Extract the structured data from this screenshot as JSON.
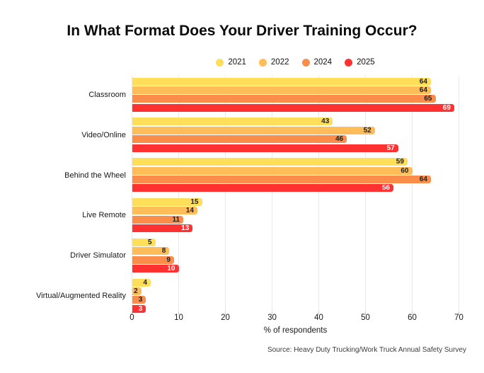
{
  "source": "Source: Heavy Duty Trucking/Work Truck Annual Safety Survey",
  "chart_data": {
    "type": "bar",
    "orientation": "horizontal",
    "title": "In What Format Does Your Driver Training Occur?",
    "categories": [
      "Classroom",
      "Video/Online",
      "Behind the Wheel",
      "Live Remote",
      "Driver Simulator",
      "Virtual/Augmented Reality"
    ],
    "series": [
      {
        "name": "2021",
        "color": "#FFDE59",
        "label_color": "#1f1f1f",
        "values": [
          64,
          43,
          59,
          15,
          5,
          4
        ]
      },
      {
        "name": "2022",
        "color": "#FFBD59",
        "label_color": "#1f1f1f",
        "values": [
          64,
          52,
          60,
          14,
          8,
          2
        ]
      },
      {
        "name": "2024",
        "color": "#FB8D4B",
        "label_color": "#1f1f1f",
        "values": [
          65,
          46,
          64,
          11,
          9,
          3
        ]
      },
      {
        "name": "2025",
        "color": "#FF3131",
        "label_color": "#ffffff",
        "values": [
          69,
          57,
          56,
          13,
          10,
          3
        ]
      }
    ],
    "xlabel": "% of respondents",
    "xlim": [
      0,
      70
    ],
    "xticks": [
      0,
      10,
      20,
      30,
      40,
      50,
      60,
      70
    ],
    "grid": true,
    "legend_position": "top",
    "value_labels": true
  }
}
